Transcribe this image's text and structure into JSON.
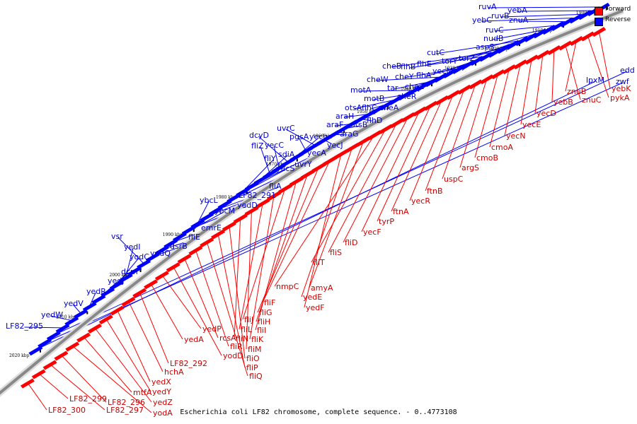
{
  "caption": "Escherichia coli LF82 chromosome, complete sequence. - 0..4773108",
  "legend": {
    "forward_label": "Forward",
    "reverse_label": "Reverse",
    "forward_color": "#ff0000",
    "reverse_color": "#0000ff"
  },
  "backbone_color": "#888888",
  "ticks": [
    "1900 kbp",
    "1910 kbp",
    "1920 kbp",
    "1930 kbp",
    "1940 kbp",
    "1950 kbp",
    "1960 kbp",
    "1970 kbp",
    "1980 kbp",
    "1990 kbp",
    "2000 kbp",
    "2010 kbp",
    "2020 kbp"
  ],
  "genes_reverse": [
    "ruvA",
    "yebA",
    "ruvB",
    "yebC",
    "znuA",
    "ruvC",
    "nudB",
    "aspS",
    "torZ",
    "cutC",
    "torY",
    "flhE",
    "cheB",
    "flhB",
    "yecM",
    "flhA",
    "cheY",
    "cheZ",
    "cheW",
    "tar",
    "cheR",
    "motA",
    "motB",
    "otsA",
    "flhC",
    "cheA",
    "araH",
    "flhD",
    "araF",
    "otsB",
    "araG",
    "yecJ",
    "uvrC",
    "pgsA",
    "yech",
    "dcyD",
    "yecC",
    "fliZ",
    "sdiA",
    "yecA",
    "fliY",
    "yecS",
    "uvrY",
    "fliA",
    "LF82_291",
    "ybcL",
    "yedD",
    "ybcM",
    "emrE",
    "fliE",
    "dsrB",
    "vsr",
    "yedQ",
    "yedI",
    "yodC",
    "dcm",
    "yedJ",
    "yedR",
    "yedV",
    "yedW",
    "LF82_295",
    "edd",
    "zwf",
    "lpxM"
  ],
  "genes_forward": [
    "yebK",
    "pykA",
    "znuB",
    "znuC",
    "yebB",
    "yecD",
    "yecE",
    "yecN",
    "cmoA",
    "cmoB",
    "argS",
    "uspC",
    "ftnB",
    "yecR",
    "ftnA",
    "tyrP",
    "yecF",
    "fliD",
    "fliS",
    "fliT",
    "nmpC",
    "amyA",
    "yedE",
    "yedF",
    "fliF",
    "fliG",
    "fliH",
    "fliI",
    "fliJ",
    "fliK",
    "fliL",
    "fliM",
    "fliN",
    "fliO",
    "fliP",
    "fliQ",
    "fliR",
    "rcsA",
    "yodD",
    "yedP",
    "yedA",
    "LF82_292",
    "hchA",
    "yedX",
    "yedY",
    "yedZ",
    "mtfA",
    "yodA",
    "LF82_296",
    "LF82_297",
    "LF82_299",
    "LF82_300"
  ]
}
